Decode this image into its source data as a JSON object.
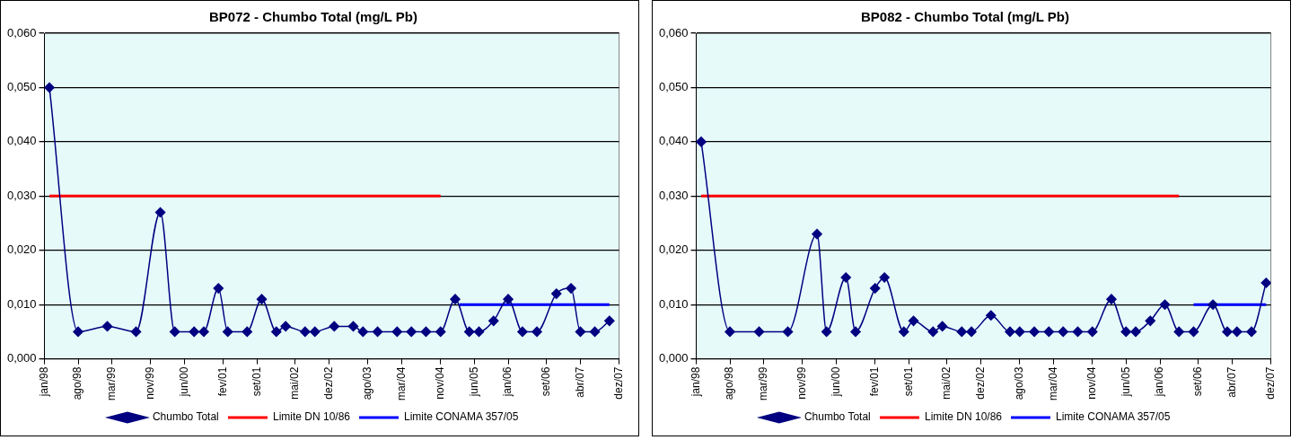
{
  "chart_data": [
    {
      "type": "line",
      "title": "BP072 - Chumbo Total (mg/L Pb)",
      "xlim": [
        "1998-01",
        "2007-12"
      ],
      "xticks": [
        {
          "value": "1998-01",
          "label": "jan/98"
        },
        {
          "value": "1998-08",
          "label": "ago/98"
        },
        {
          "value": "1999-03",
          "label": "mar/99"
        },
        {
          "value": "1999-11",
          "label": "nov/99"
        },
        {
          "value": "2000-06",
          "label": "jun/00"
        },
        {
          "value": "2001-02",
          "label": "fev/01"
        },
        {
          "value": "2001-09",
          "label": "set/01"
        },
        {
          "value": "2002-05",
          "label": "mai/02"
        },
        {
          "value": "2002-12",
          "label": "dez/02"
        },
        {
          "value": "2003-08",
          "label": "ago/03"
        },
        {
          "value": "2004-03",
          "label": "mar/04"
        },
        {
          "value": "2004-11",
          "label": "nov/04"
        },
        {
          "value": "2005-06",
          "label": "jun/05"
        },
        {
          "value": "2006-01",
          "label": "jan/06"
        },
        {
          "value": "2006-09",
          "label": "set/06"
        },
        {
          "value": "2007-04",
          "label": "abr/07"
        },
        {
          "value": "2007-12",
          "label": "dez/07"
        }
      ],
      "ylim": [
        0,
        0.06
      ],
      "yticks": [
        {
          "value": 0,
          "label": "0,000"
        },
        {
          "value": 0.01,
          "label": "0,010"
        },
        {
          "value": 0.02,
          "label": "0,020"
        },
        {
          "value": 0.03,
          "label": "0,030"
        },
        {
          "value": 0.04,
          "label": "0,040"
        },
        {
          "value": 0.05,
          "label": "0,050"
        },
        {
          "value": 0.06,
          "label": "0,060"
        }
      ],
      "grid": "y",
      "legend": "bottom",
      "marker": "diamond",
      "series": [
        {
          "name": "Chumbo Total",
          "color": "#000080",
          "x": [
            "1998-02",
            "1998-08",
            "1999-02",
            "1999-08",
            "2000-01",
            "2000-04",
            "2000-08",
            "2000-10",
            "2001-01",
            "2001-03",
            "2001-07",
            "2001-10",
            "2002-01",
            "2002-03",
            "2002-07",
            "2002-09",
            "2003-01",
            "2003-05",
            "2003-07",
            "2003-10",
            "2004-02",
            "2004-05",
            "2004-08",
            "2004-11",
            "2005-02",
            "2005-05",
            "2005-07",
            "2005-10",
            "2006-01",
            "2006-04",
            "2006-07",
            "2006-11",
            "2007-02",
            "2007-04",
            "2007-07",
            "2007-10"
          ],
          "values": [
            0.05,
            0.005,
            0.006,
            0.005,
            0.027,
            0.005,
            0.005,
            0.005,
            0.013,
            0.005,
            0.005,
            0.011,
            0.005,
            0.006,
            0.005,
            0.005,
            0.006,
            0.006,
            0.005,
            0.005,
            0.005,
            0.005,
            0.005,
            0.005,
            0.011,
            0.005,
            0.005,
            0.007,
            0.011,
            0.005,
            0.005,
            0.012,
            0.013,
            0.005,
            0.005,
            0.007
          ]
        },
        {
          "name": "Limite DN 10/86",
          "color": "#ff0000",
          "marker": "none",
          "x": [
            "1998-02",
            "2004-11"
          ],
          "values": [
            0.03,
            0.03
          ]
        },
        {
          "name": "Limite CONAMA 357/05",
          "color": "#0000ff",
          "marker": "none",
          "x": [
            "2005-03",
            "2007-10"
          ],
          "values": [
            0.01,
            0.01
          ]
        }
      ]
    },
    {
      "type": "line",
      "title": "BP082 - Chumbo Total (mg/L Pb)",
      "xlim": [
        "1998-01",
        "2007-12"
      ],
      "xticks": [
        {
          "value": "1998-01",
          "label": "jan/98"
        },
        {
          "value": "1998-08",
          "label": "ago/98"
        },
        {
          "value": "1999-03",
          "label": "mar/99"
        },
        {
          "value": "1999-11",
          "label": "nov/99"
        },
        {
          "value": "2000-06",
          "label": "jun/00"
        },
        {
          "value": "2001-02",
          "label": "fev/01"
        },
        {
          "value": "2001-09",
          "label": "set/01"
        },
        {
          "value": "2002-05",
          "label": "mai/02"
        },
        {
          "value": "2002-12",
          "label": "dez/02"
        },
        {
          "value": "2003-08",
          "label": "ago/03"
        },
        {
          "value": "2004-03",
          "label": "mar/04"
        },
        {
          "value": "2004-11",
          "label": "nov/04"
        },
        {
          "value": "2005-06",
          "label": "jun/05"
        },
        {
          "value": "2006-01",
          "label": "jan/06"
        },
        {
          "value": "2006-09",
          "label": "set/06"
        },
        {
          "value": "2007-04",
          "label": "abr/07"
        },
        {
          "value": "2007-12",
          "label": "dez/07"
        }
      ],
      "ylim": [
        0,
        0.06
      ],
      "yticks": [
        {
          "value": 0,
          "label": "0,000"
        },
        {
          "value": 0.01,
          "label": "0,010"
        },
        {
          "value": 0.02,
          "label": "0,020"
        },
        {
          "value": 0.03,
          "label": "0,030"
        },
        {
          "value": 0.04,
          "label": "0,040"
        },
        {
          "value": 0.05,
          "label": "0,050"
        },
        {
          "value": 0.06,
          "label": "0,060"
        }
      ],
      "grid": "y",
      "legend": "bottom",
      "marker": "diamond",
      "series": [
        {
          "name": "Chumbo Total",
          "color": "#000080",
          "x": [
            "1998-02",
            "1998-08",
            "1999-02",
            "1999-08",
            "2000-02",
            "2000-04",
            "2000-08",
            "2000-10",
            "2001-02",
            "2001-04",
            "2001-08",
            "2001-10",
            "2002-02",
            "2002-04",
            "2002-08",
            "2002-10",
            "2003-02",
            "2003-06",
            "2003-08",
            "2003-11",
            "2004-02",
            "2004-05",
            "2004-08",
            "2004-11",
            "2005-03",
            "2005-06",
            "2005-08",
            "2005-11",
            "2006-02",
            "2006-05",
            "2006-08",
            "2006-12",
            "2007-03",
            "2007-05",
            "2007-08",
            "2007-11"
          ],
          "values": [
            0.04,
            0.005,
            0.005,
            0.005,
            0.023,
            0.005,
            0.015,
            0.005,
            0.013,
            0.015,
            0.005,
            0.007,
            0.005,
            0.006,
            0.005,
            0.005,
            0.008,
            0.005,
            0.005,
            0.005,
            0.005,
            0.005,
            0.005,
            0.005,
            0.011,
            0.005,
            0.005,
            0.007,
            0.01,
            0.005,
            0.005,
            0.01,
            0.005,
            0.005,
            0.005,
            0.014
          ]
        },
        {
          "name": "Limite DN 10/86",
          "color": "#ff0000",
          "marker": "none",
          "x": [
            "1998-02",
            "2006-05"
          ],
          "values": [
            0.03,
            0.03
          ]
        },
        {
          "name": "Limite CONAMA 357/05",
          "color": "#0000ff",
          "marker": "none",
          "x": [
            "2006-08",
            "2007-11"
          ],
          "values": [
            0.01,
            0.01
          ]
        }
      ]
    }
  ]
}
